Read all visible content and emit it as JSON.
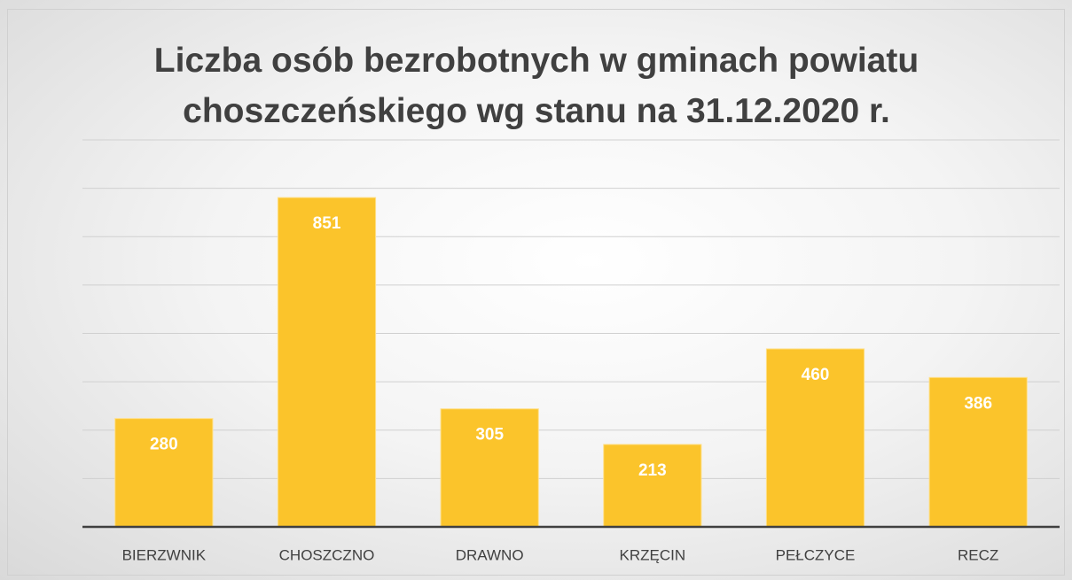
{
  "chart_data": {
    "type": "bar",
    "title": "Liczba osób bezrobotnych w gminach powiatu choszczeńskiego wg stanu na 31.12.2020 r.",
    "categories": [
      "BIERZWNIK",
      "CHOSZCZNO",
      "DRAWNO",
      "KRZĘCIN",
      "PEŁCZYCE",
      "RECZ"
    ],
    "values": [
      280,
      851,
      305,
      213,
      460,
      386
    ],
    "color": "#fbc42b",
    "ylim": [
      0,
      1000
    ],
    "yticks": [
      0,
      125,
      250,
      375,
      500,
      625,
      750,
      875,
      1000
    ],
    "grid": true
  }
}
